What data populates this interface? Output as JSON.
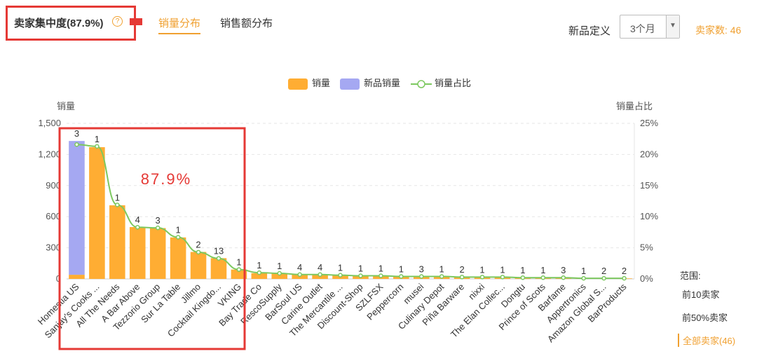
{
  "header": {
    "title": "卖家集中度(87.9%)",
    "help_icon": "question-circle-icon",
    "tabs": [
      {
        "label": "销量分布",
        "active": true
      },
      {
        "label": "销售额分布",
        "active": false
      }
    ],
    "new_product_label": "新品定义",
    "select_value": "3个月",
    "seller_count": "卖家数: 46"
  },
  "legend": {
    "sales": "销量",
    "new_sales": "新品销量",
    "ratio": "销量占比"
  },
  "annotation": "87.9%",
  "range": {
    "title": "范围:",
    "options": [
      {
        "label": "前10卖家",
        "active": false
      },
      {
        "label": "前50%卖家",
        "active": false
      },
      {
        "label": "全部卖家(46)",
        "active": true
      }
    ]
  },
  "colors": {
    "sales": "#FFAD33",
    "new_sales": "#A5A8F2",
    "ratio_line": "#7CC85F",
    "accent": "#F0A030",
    "highlight": "#E53935"
  },
  "chart_data": {
    "type": "bar",
    "ylabel": "销量",
    "y2label": "销量占比",
    "ylim": [
      0,
      1500
    ],
    "yticks": [
      "0",
      "300",
      "600",
      "900",
      "1,200",
      "1,500"
    ],
    "y2lim": [
      0,
      25
    ],
    "y2ticks": [
      "0%",
      "5%",
      "10%",
      "15%",
      "20%",
      "25%"
    ],
    "grid": true,
    "legend_position": "top-center",
    "categories": [
      "Homestia US",
      "Sanjay's Cooks ...",
      "All The Needs",
      "A Bar Above",
      "Tezzorio Group",
      "Sur La Table",
      "Jillmo",
      "Cocktail Kingdo...",
      "VKING",
      "Bay Trade Co",
      "RescoSupply",
      "BarSoul US",
      "Carine Outlet",
      "The Mercantile ...",
      "Discount-Shop",
      "SZLFSX",
      "Peppercorn",
      "musei",
      "Culinary Depot",
      "Piña Barware",
      "nixxi",
      "The Elan Collec...",
      "Dongtu",
      "Prince of Scots",
      "Barfame",
      "Appertronics",
      "Amazon Global S...",
      "BarProducts"
    ],
    "series": [
      {
        "name": "销量",
        "values": [
          40,
          1270,
          710,
          500,
          490,
          400,
          260,
          200,
          90,
          55,
          50,
          42,
          40,
          35,
          30,
          28,
          25,
          25,
          22,
          20,
          18,
          16,
          14,
          12,
          10,
          8,
          6,
          5
        ]
      },
      {
        "name": "新品销量",
        "values": [
          1290,
          0,
          0,
          0,
          0,
          0,
          0,
          0,
          0,
          0,
          0,
          0,
          0,
          0,
          0,
          0,
          0,
          0,
          0,
          0,
          0,
          0,
          0,
          0,
          0,
          0,
          0,
          0
        ]
      },
      {
        "name": "销量占比",
        "unit": "%",
        "values": [
          21.6,
          21.3,
          11.9,
          8.3,
          8.2,
          6.7,
          4.3,
          3.3,
          1.5,
          1.0,
          0.9,
          0.7,
          0.7,
          0.6,
          0.5,
          0.5,
          0.4,
          0.4,
          0.4,
          0.3,
          0.3,
          0.3,
          0.2,
          0.2,
          0.2,
          0.1,
          0.1,
          0.1
        ]
      }
    ],
    "bar_labels": [
      "3",
      "1",
      "1",
      "4",
      "3",
      "1",
      "2",
      "13",
      "1",
      "1",
      "1",
      "4",
      "4",
      "1",
      "1",
      "1",
      "1",
      "3",
      "1",
      "2",
      "1",
      "1",
      "1",
      "1",
      "3",
      "1",
      "2",
      "2"
    ]
  }
}
